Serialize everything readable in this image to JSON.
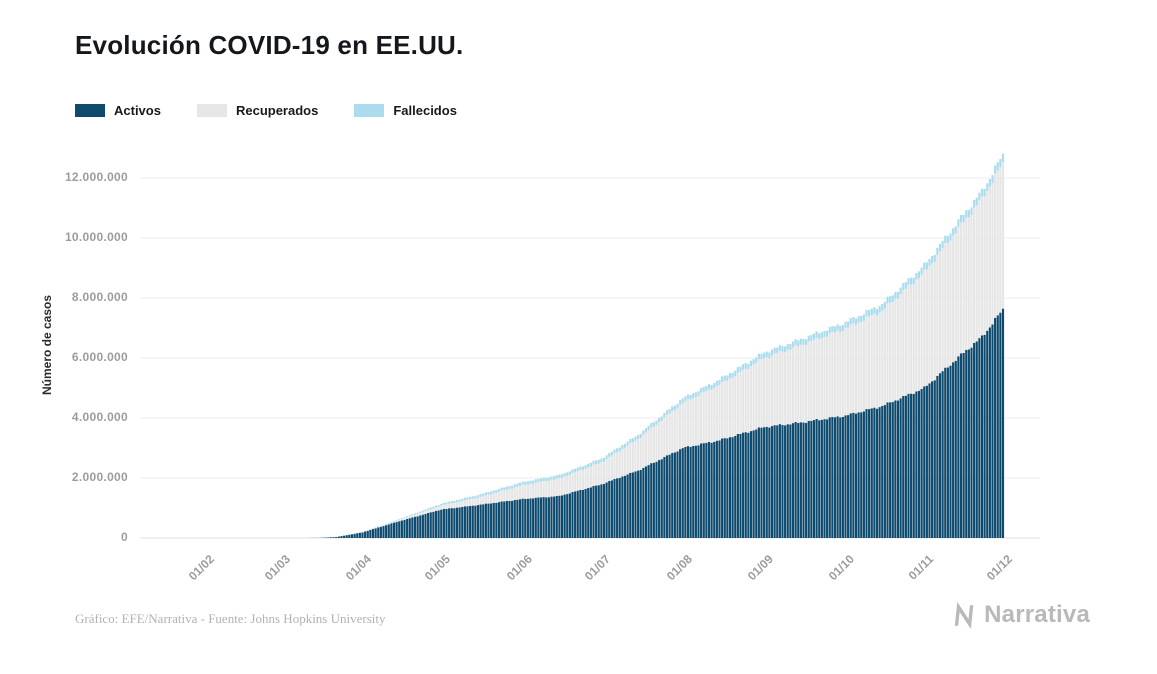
{
  "page": {
    "footer_caption": "Gráfico: EFE/Narrativa - Fuente: Johns Hopkins University",
    "brand": "Narrativa"
  },
  "chart_data": {
    "type": "bar",
    "stacked": true,
    "title": "Evolución COVID-19 en EE.UU.",
    "xlabel": "",
    "ylabel": "Número de casos",
    "ylim": [
      0,
      12800000
    ],
    "grid": "horizontal",
    "legend_position": "top-left",
    "y_ticks": [
      {
        "value": 0,
        "label": "0"
      },
      {
        "value": 2000000,
        "label": "2.000.000"
      },
      {
        "value": 4000000,
        "label": "4.000.000"
      },
      {
        "value": 6000000,
        "label": "6.000.000"
      },
      {
        "value": 8000000,
        "label": "8.000.000"
      },
      {
        "value": 10000000,
        "label": "10.000.000"
      },
      {
        "value": 12000000,
        "label": "12.000.000"
      }
    ],
    "x_ticks": [
      {
        "day": 0,
        "label": "01/02"
      },
      {
        "day": 29,
        "label": "01/03"
      },
      {
        "day": 60,
        "label": "01/04"
      },
      {
        "day": 90,
        "label": "01/05"
      },
      {
        "day": 121,
        "label": "01/06"
      },
      {
        "day": 151,
        "label": "01/07"
      },
      {
        "day": 182,
        "label": "01/08"
      },
      {
        "day": 213,
        "label": "01/09"
      },
      {
        "day": 244,
        "label": "01/10"
      },
      {
        "day": 274,
        "label": "01/11"
      },
      {
        "day": 304,
        "label": "01/12"
      }
    ],
    "series": [
      {
        "name": "Activos",
        "color": "#0e4a6e"
      },
      {
        "name": "Recuperados",
        "color": "#e6e6e6"
      },
      {
        "name": "Fallecidos",
        "color": "#aadcee"
      }
    ],
    "points": [
      {
        "day": 0,
        "activos": 0,
        "recuperados": 0,
        "fallecidos": 0
      },
      {
        "day": 29,
        "activos": 30,
        "recuperados": 5,
        "fallecidos": 1
      },
      {
        "day": 43,
        "activos": 3500,
        "recuperados": 60,
        "fallecidos": 65
      },
      {
        "day": 50,
        "activos": 32000,
        "recuperados": 400,
        "fallecidos": 500
      },
      {
        "day": 60,
        "activos": 190000,
        "recuperados": 8500,
        "fallecidos": 4800
      },
      {
        "day": 74,
        "activos": 560000,
        "recuperados": 43000,
        "fallecidos": 26000
      },
      {
        "day": 90,
        "activos": 950000,
        "recuperados": 130000,
        "fallecidos": 63000
      },
      {
        "day": 104,
        "activos": 1100000,
        "recuperados": 246000,
        "fallecidos": 86000
      },
      {
        "day": 121,
        "activos": 1300000,
        "recuperados": 458000,
        "fallecidos": 106000
      },
      {
        "day": 135,
        "activos": 1400000,
        "recuperados": 583000,
        "fallecidos": 117000
      },
      {
        "day": 151,
        "activos": 1790000,
        "recuperados": 730000,
        "fallecidos": 128000
      },
      {
        "day": 165,
        "activos": 2250000,
        "recuperados": 1050000,
        "fallecidos": 138000
      },
      {
        "day": 182,
        "activos": 3000000,
        "recuperados": 1500000,
        "fallecidos": 155000
      },
      {
        "day": 196,
        "activos": 3260000,
        "recuperados": 1850000,
        "fallecidos": 170000
      },
      {
        "day": 213,
        "activos": 3700000,
        "recuperados": 2300000,
        "fallecidos": 186000
      },
      {
        "day": 227,
        "activos": 3850000,
        "recuperados": 2580000,
        "fallecidos": 196000
      },
      {
        "day": 244,
        "activos": 4080000,
        "recuperados": 2900000,
        "fallecidos": 208000
      },
      {
        "day": 258,
        "activos": 4400000,
        "recuperados": 3180000,
        "fallecidos": 219000
      },
      {
        "day": 274,
        "activos": 5000000,
        "recuperados": 3850000,
        "fallecidos": 231000
      },
      {
        "day": 288,
        "activos": 6100000,
        "recuperados": 4330000,
        "fallecidos": 248000
      },
      {
        "day": 296,
        "activos": 6700000,
        "recuperados": 4600000,
        "fallecidos": 256000
      },
      {
        "day": 304,
        "activos": 7620000,
        "recuperados": 4880000,
        "fallecidos": 273000
      }
    ]
  }
}
